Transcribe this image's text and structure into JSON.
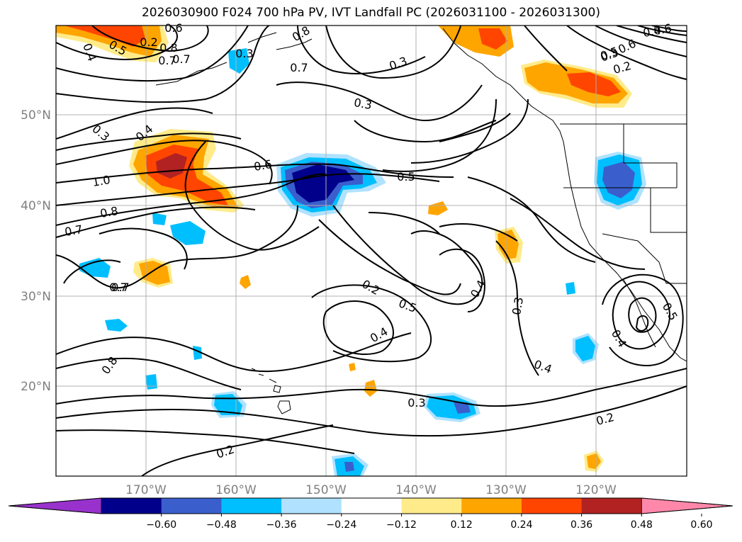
{
  "title": "2026030900 F024 700 hPa PV, IVT Landfall PC (2026031100 - 2026031300)",
  "map": {
    "lon_labels": [
      "170°W",
      "160°W",
      "150°W",
      "140°W",
      "130°W",
      "120°W"
    ],
    "lat_labels": [
      "50°N",
      "40°N",
      "30°N",
      "20°N"
    ]
  },
  "contour_labels": [
    "0.4",
    "0.5",
    "0.7",
    "0.8",
    "1.0",
    "0.8",
    "0.7",
    "0.3",
    "0.4",
    "0.6",
    "0.5",
    "0.6",
    "0.8",
    "0.7",
    "0.3",
    "0.7",
    "0.3",
    "0.2",
    "0.5",
    "0.4",
    "0.3",
    "0.2",
    "0.3",
    "0.4",
    "0.2",
    "0.7",
    "0.8",
    "0.4",
    "0.5",
    "0.6",
    "0.3",
    "0.2",
    "0.4",
    "0.6",
    "0.5",
    "0.7",
    "0.4",
    "0.2",
    "0.3"
  ],
  "colorbar": {
    "ticks": [
      "−0.60",
      "−0.48",
      "−0.36",
      "−0.24",
      "−0.12",
      "0.12",
      "0.24",
      "0.36",
      "0.48",
      "0.60"
    ],
    "colors": [
      "#9932cc",
      "#00008b",
      "#3a5fcd",
      "#00bfff",
      "#b0e2ff",
      "#ffffff",
      "#ffeb8a",
      "#ffa500",
      "#ff4500",
      "#b22222",
      "#ff88aa"
    ]
  }
}
